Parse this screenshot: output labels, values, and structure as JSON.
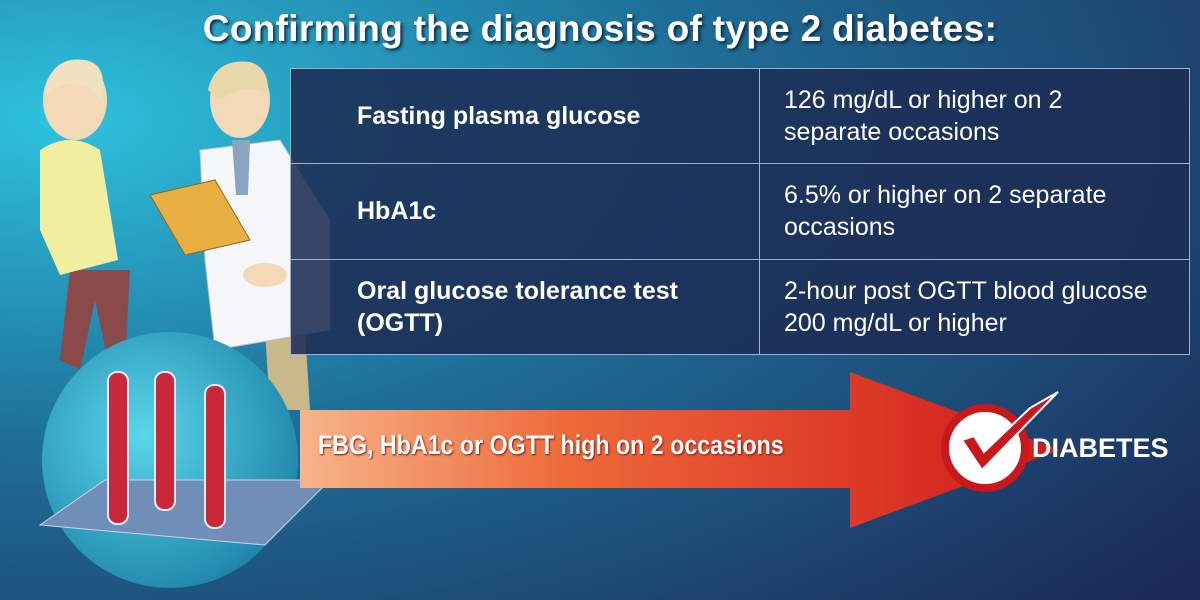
{
  "header": {
    "title": "Confirming the diagnosis of type 2 diabetes:"
  },
  "table": {
    "rows": [
      [
        "Fasting plasma glucose",
        "126 mg/dL or higher on 2 separate occasions"
      ],
      [
        "HbA1c",
        "6.5% or higher on 2 separate occasions"
      ],
      [
        "Oral glucose tolerance test (OGTT)",
        "2-hour post OGTT blood glucose 200 mg/dL or higher"
      ]
    ]
  },
  "arrow": {
    "label": "FBG, HbA1c or OGTT high on 2 occasions"
  },
  "result": {
    "label": "DIABETES"
  }
}
